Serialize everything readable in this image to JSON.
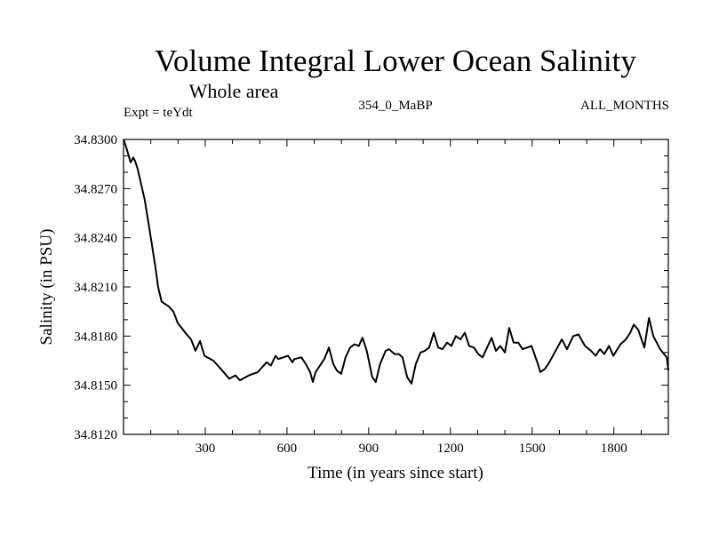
{
  "chart_data": {
    "type": "line",
    "title": "Volume Integral Lower Ocean Salinity",
    "subtitle": "Whole area",
    "annotations": {
      "left": "Expt = teYdt",
      "center": "354_0_MaBP",
      "right": "ALL_MONTHS"
    },
    "xlabel": "Time (in years since start)",
    "ylabel": "Salinity (in PSU)",
    "xlim": [
      0,
      2000
    ],
    "ylim": [
      34.812,
      34.83
    ],
    "xticks": [
      300,
      600,
      900,
      1200,
      1500,
      1800
    ],
    "xtick_labels": [
      "300",
      "600",
      "900",
      "1200",
      "1500",
      "1800"
    ],
    "yticks": [
      34.812,
      34.815,
      34.818,
      34.821,
      34.824,
      34.827,
      34.83
    ],
    "ytick_labels": [
      "34.8120",
      "34.8150",
      "34.8180",
      "34.8210",
      "34.8240",
      "34.8270",
      "34.8300"
    ],
    "grid": false,
    "legend": "none",
    "series": [
      {
        "name": "Salinity",
        "color": "#000000",
        "x": [
          0,
          10,
          26,
          36,
          42,
          52,
          78,
          101,
          117,
          127,
          140,
          166,
          183,
          199,
          232,
          248,
          264,
          281,
          297,
          330,
          346,
          362,
          388,
          411,
          427,
          460,
          493,
          525,
          541,
          558,
          568,
          604,
          620,
          627,
          653,
          669,
          685,
          695,
          705,
          721,
          737,
          754,
          770,
          783,
          799,
          815,
          832,
          848,
          864,
          877,
          893,
          913,
          926,
          942,
          962,
          975,
          995,
          1011,
          1024,
          1041,
          1057,
          1073,
          1090,
          1106,
          1122,
          1139,
          1155,
          1171,
          1188,
          1204,
          1220,
          1237,
          1253,
          1269,
          1286,
          1302,
          1318,
          1351,
          1367,
          1383,
          1400,
          1416,
          1432,
          1449,
          1465,
          1498,
          1521,
          1530,
          1547,
          1563,
          1609,
          1628,
          1651,
          1670,
          1694,
          1716,
          1733,
          1749,
          1765,
          1782,
          1798,
          1824,
          1844,
          1860,
          1873,
          1889,
          1912,
          1929,
          1945,
          1970,
          1994,
          2000
        ],
        "y": [
          34.83,
          34.8295,
          34.8286,
          34.8289,
          34.8287,
          34.8282,
          34.8263,
          34.8239,
          34.8222,
          34.821,
          34.8201,
          34.8198,
          34.8195,
          34.8188,
          34.8181,
          34.8178,
          34.8171,
          34.8177,
          34.8168,
          34.8165,
          34.8162,
          34.8159,
          34.8154,
          34.8156,
          34.8153,
          34.8156,
          34.8158,
          34.8164,
          34.8162,
          34.8168,
          34.8166,
          34.8168,
          34.8164,
          34.8166,
          34.8167,
          34.8163,
          34.8158,
          34.8152,
          34.8158,
          34.8162,
          34.8166,
          34.8173,
          34.8163,
          34.8159,
          34.8157,
          34.8167,
          34.8173,
          34.8175,
          34.8174,
          34.8179,
          34.8171,
          34.8155,
          34.8152,
          34.8163,
          34.8171,
          34.8172,
          34.8169,
          34.8169,
          34.8167,
          34.8155,
          34.8151,
          34.8163,
          34.817,
          34.8171,
          34.8173,
          34.8182,
          34.8173,
          34.8172,
          34.8176,
          34.8174,
          34.818,
          34.8178,
          34.8182,
          34.8174,
          34.8173,
          34.8169,
          34.8167,
          34.8179,
          34.8171,
          34.8174,
          34.817,
          34.8185,
          34.8176,
          34.8176,
          34.8172,
          34.8174,
          34.8163,
          34.8158,
          34.816,
          34.8164,
          34.8178,
          34.8172,
          34.818,
          34.8181,
          34.8174,
          34.8171,
          34.8168,
          34.8172,
          34.8169,
          34.8174,
          34.8168,
          34.8175,
          34.8178,
          34.8182,
          34.8187,
          34.8184,
          34.8173,
          34.8191,
          34.818,
          34.8172,
          34.8167,
          34.8159
        ]
      }
    ]
  }
}
